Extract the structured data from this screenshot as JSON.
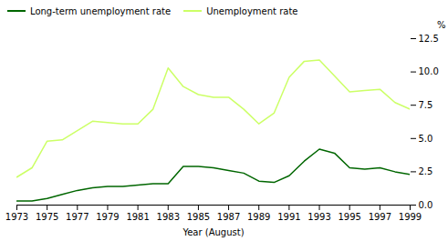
{
  "chart_data": {
    "type": "line",
    "xlabel": "Year (August)",
    "ylabel": "%",
    "x": [
      1973,
      1974,
      1975,
      1976,
      1977,
      1978,
      1979,
      1980,
      1981,
      1982,
      1983,
      1984,
      1985,
      1986,
      1987,
      1988,
      1989,
      1990,
      1991,
      1992,
      1993,
      1994,
      1995,
      1996,
      1997,
      1998,
      1999
    ],
    "series": [
      {
        "name": "Long-term unemployment rate",
        "color": "#006600",
        "values": [
          0.3,
          0.3,
          0.5,
          0.8,
          1.1,
          1.3,
          1.4,
          1.4,
          1.5,
          1.6,
          1.6,
          2.9,
          2.9,
          2.8,
          2.6,
          2.4,
          1.8,
          1.7,
          2.2,
          3.3,
          4.2,
          3.9,
          2.8,
          2.7,
          2.8,
          2.5,
          2.3
        ]
      },
      {
        "name": "Unemployment rate",
        "color": "#ccff66",
        "values": [
          2.1,
          2.8,
          4.8,
          4.9,
          5.6,
          6.3,
          6.2,
          6.1,
          6.1,
          7.2,
          10.3,
          8.9,
          8.3,
          8.1,
          8.1,
          7.2,
          6.1,
          6.9,
          9.6,
          10.8,
          10.9,
          9.7,
          8.5,
          8.6,
          8.7,
          7.7,
          7.2
        ]
      }
    ],
    "xlim": [
      1973,
      1999
    ],
    "xticks": [
      1973,
      1975,
      1977,
      1979,
      1981,
      1983,
      1985,
      1987,
      1989,
      1991,
      1993,
      1995,
      1997,
      1999
    ],
    "ylim": [
      0.0,
      12.5
    ],
    "yticks": [
      {
        "value": 0,
        "label": "0.0"
      },
      2.5,
      {
        "value": 5,
        "label": "5.0"
      },
      7.5,
      {
        "value": 10,
        "label": "10.0"
      },
      12.5
    ],
    "grid": false,
    "legend": "upper left"
  }
}
